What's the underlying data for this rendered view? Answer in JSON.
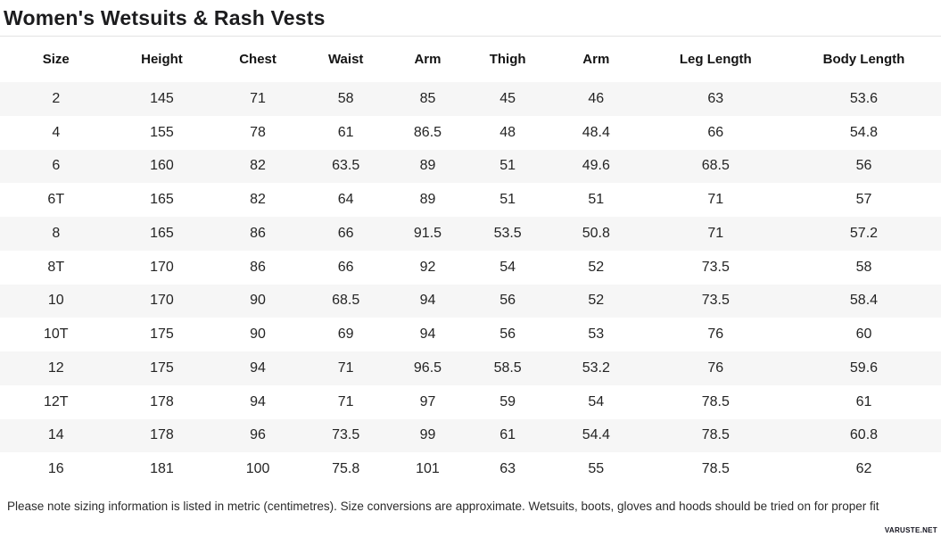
{
  "page": {
    "title": "Women's Wetsuits & Rash Vests",
    "note": "Please note sizing information is listed in metric (centimetres). Size conversions are approximate. Wetsuits, boots, gloves and hoods should be tried on for proper fit",
    "watermark": "VARUSTE.NET"
  },
  "colors": {
    "background": "#ffffff",
    "row_stripe": "#f6f6f6",
    "divider": "#e3e3e3",
    "text": "#222222"
  },
  "chart_data": {
    "type": "table",
    "title": "Women's Wetsuits & Rash Vests",
    "units": "centimetres",
    "columns": [
      "Size",
      "Height",
      "Chest",
      "Waist",
      "Arm",
      "Thigh",
      "Arm",
      "Leg Length",
      "Body Length"
    ],
    "rows": [
      [
        "2",
        "145",
        "71",
        "58",
        "85",
        "45",
        "46",
        "63",
        "53.6"
      ],
      [
        "4",
        "155",
        "78",
        "61",
        "86.5",
        "48",
        "48.4",
        "66",
        "54.8"
      ],
      [
        "6",
        "160",
        "82",
        "63.5",
        "89",
        "51",
        "49.6",
        "68.5",
        "56"
      ],
      [
        "6T",
        "165",
        "82",
        "64",
        "89",
        "51",
        "51",
        "71",
        "57"
      ],
      [
        "8",
        "165",
        "86",
        "66",
        "91.5",
        "53.5",
        "50.8",
        "71",
        "57.2"
      ],
      [
        "8T",
        "170",
        "86",
        "66",
        "92",
        "54",
        "52",
        "73.5",
        "58"
      ],
      [
        "10",
        "170",
        "90",
        "68.5",
        "94",
        "56",
        "52",
        "73.5",
        "58.4"
      ],
      [
        "10T",
        "175",
        "90",
        "69",
        "94",
        "56",
        "53",
        "76",
        "60"
      ],
      [
        "12",
        "175",
        "94",
        "71",
        "96.5",
        "58.5",
        "53.2",
        "76",
        "59.6"
      ],
      [
        "12T",
        "178",
        "94",
        "71",
        "97",
        "59",
        "54",
        "78.5",
        "61"
      ],
      [
        "14",
        "178",
        "96",
        "73.5",
        "99",
        "61",
        "54.4",
        "78.5",
        "60.8"
      ],
      [
        "16",
        "181",
        "100",
        "75.8",
        "101",
        "63",
        "55",
        "78.5",
        "62"
      ]
    ],
    "layout": {
      "row_striping": true,
      "stripe_color": "#f6f6f6",
      "header_position": "top"
    }
  }
}
